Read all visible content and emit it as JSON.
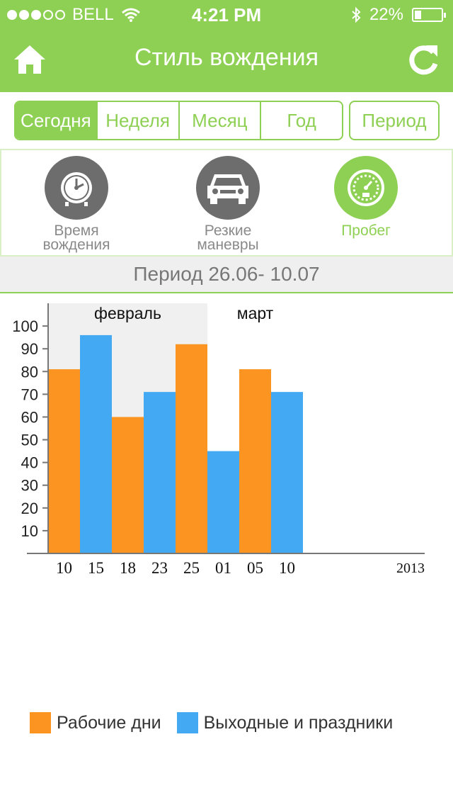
{
  "status_bar": {
    "carrier": "BELL",
    "time": "4:21 PM",
    "battery": "22%"
  },
  "header": {
    "title": "Стиль вождения"
  },
  "tabs": [
    {
      "label": "Сегодня",
      "active": true
    },
    {
      "label": "Неделя",
      "active": false
    },
    {
      "label": "Месяц",
      "active": false
    },
    {
      "label": "Год",
      "active": false
    }
  ],
  "period_button": "Период",
  "modes": [
    {
      "line1": "Время",
      "line2": "вождения",
      "icon": "clock-icon",
      "active": false
    },
    {
      "line1": "Резкие",
      "line2": "маневры",
      "icon": "car-icon",
      "active": false
    },
    {
      "line1": "Пробег",
      "line2": "",
      "icon": "speedometer-icon",
      "active": true
    }
  ],
  "period_text": "Период 26.06- 10.07",
  "colors": {
    "green": "#8ed053",
    "orange": "#fb9420",
    "blue": "#43a9f2",
    "gray_icon": "#6d6d6d"
  },
  "chart_data": {
    "type": "bar",
    "categories": [
      "10",
      "15",
      "18",
      "23",
      "25",
      "01",
      "05",
      "10"
    ],
    "values": [
      81,
      96,
      60,
      71,
      92,
      45,
      81,
      71
    ],
    "series_by_bar": [
      "Рабочие дни",
      "Выходные и праздники",
      "Рабочие дни",
      "Выходные и праздники",
      "Рабочие дни",
      "Выходные и праздники",
      "Рабочие дни",
      "Выходные и праздники"
    ],
    "groups": [
      {
        "label": "февраль",
        "categories": [
          0,
          4
        ],
        "shaded": true
      },
      {
        "label": "март",
        "categories": [
          5,
          7
        ],
        "shaded": false
      }
    ],
    "y_ticks": [
      10,
      20,
      30,
      40,
      50,
      60,
      70,
      80,
      90,
      100
    ],
    "ylim": [
      0,
      110
    ],
    "year_label": "2013",
    "legend": [
      {
        "name": "Рабочие дни",
        "color": "#fb9420"
      },
      {
        "name": "Выходные и праздники",
        "color": "#43a9f2"
      }
    ]
  }
}
